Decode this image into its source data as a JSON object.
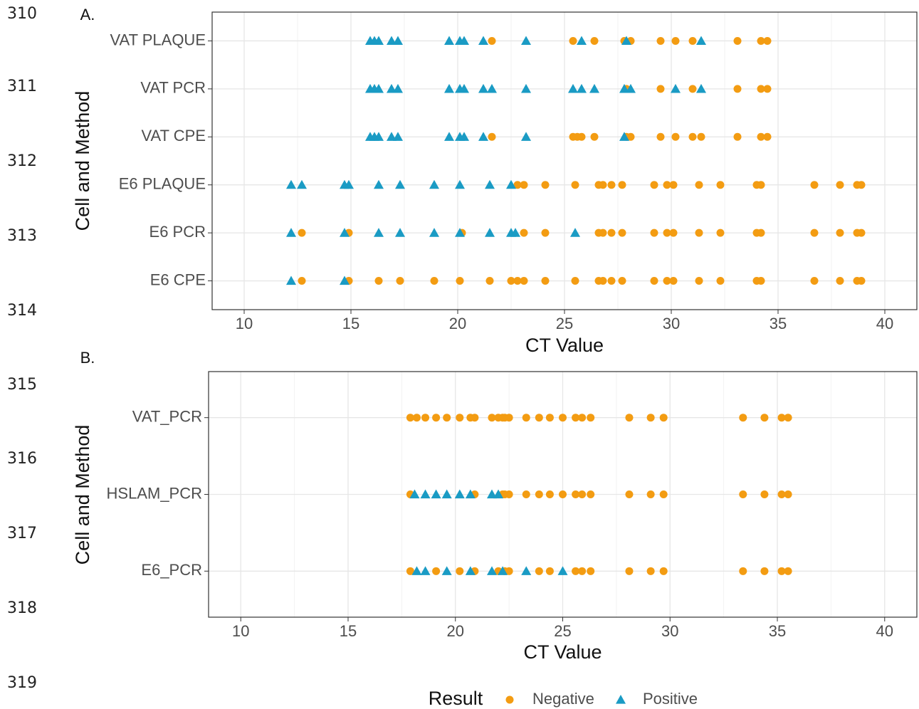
{
  "line_numbers": [
    "310",
    "311",
    "312",
    "313",
    "314",
    "315",
    "316",
    "317",
    "318",
    "319"
  ],
  "legend": {
    "title": "Result"
  },
  "chart_data": [
    {
      "type": "scatter",
      "panel_label": "A.",
      "x_label": "CT Value",
      "y_label": "Cell and Method",
      "categories": [
        "VAT PLAQUE",
        "VAT PCR",
        "VAT CPE",
        "E6 PLAQUE",
        "E6 PCR",
        "E6 CPE"
      ],
      "xlim": [
        8.5,
        41.5
      ],
      "xticks": [
        10,
        15,
        20,
        25,
        30,
        35,
        40
      ],
      "grid": true,
      "minor_grid": true,
      "series": [
        {
          "name": "Negative",
          "color": "#f39c12",
          "marker": "circle",
          "values": [
            [
              21.6,
              25.4,
              26.4,
              27.8,
              28.1,
              29.5,
              30.2,
              31.0,
              33.1,
              34.2,
              34.5
            ],
            [
              27.9,
              29.5,
              31.0,
              33.1,
              34.2,
              34.5
            ],
            [
              21.6,
              25.4,
              25.6,
              25.8,
              26.4,
              27.9,
              28.1,
              29.5,
              30.2,
              31.0,
              31.4,
              33.1,
              34.2,
              34.5
            ],
            [
              22.8,
              23.1,
              24.1,
              25.5,
              26.6,
              26.8,
              27.2,
              27.7,
              29.2,
              29.8,
              30.1,
              31.3,
              32.3,
              34.0,
              34.2,
              36.7,
              37.9,
              38.7,
              38.9
            ],
            [
              12.7,
              14.9,
              20.2,
              23.1,
              24.1,
              26.6,
              26.8,
              27.2,
              27.7,
              29.2,
              29.8,
              30.1,
              31.3,
              32.3,
              34.0,
              34.2,
              36.7,
              37.9,
              38.7,
              38.9
            ],
            [
              12.7,
              14.9,
              16.3,
              17.3,
              18.9,
              20.1,
              21.5,
              22.5,
              22.8,
              23.1,
              24.1,
              25.5,
              26.6,
              26.8,
              27.2,
              27.7,
              29.2,
              29.8,
              30.1,
              31.3,
              32.3,
              34.0,
              34.2,
              36.7,
              37.9,
              38.7,
              38.9
            ]
          ]
        },
        {
          "name": "Positive",
          "color": "#1a9bc4",
          "marker": "triangle",
          "values": [
            [
              15.9,
              16.1,
              16.3,
              16.9,
              17.2,
              19.6,
              20.1,
              20.3,
              21.2,
              23.2,
              25.8,
              27.9,
              31.4
            ],
            [
              15.9,
              16.1,
              16.3,
              16.9,
              17.2,
              19.6,
              20.1,
              20.3,
              21.2,
              21.6,
              23.2,
              25.4,
              25.8,
              26.4,
              27.8,
              28.1,
              30.2,
              31.4
            ],
            [
              15.9,
              16.1,
              16.3,
              16.9,
              17.2,
              19.6,
              20.1,
              20.3,
              21.2,
              23.2,
              27.8
            ],
            [
              12.2,
              12.7,
              14.7,
              14.9,
              16.3,
              17.3,
              18.9,
              20.1,
              21.5,
              22.5
            ],
            [
              12.2,
              14.7,
              16.3,
              17.3,
              18.9,
              20.1,
              21.5,
              22.5,
              22.7,
              25.5
            ],
            [
              12.2,
              14.7
            ]
          ]
        }
      ]
    },
    {
      "type": "scatter",
      "panel_label": "B.",
      "x_label": "CT Value",
      "y_label": "Cell and Method",
      "categories": [
        "VAT_PCR",
        "HSLAM_PCR",
        "E6_PCR"
      ],
      "xlim": [
        8.5,
        41.5
      ],
      "xticks": [
        10,
        15,
        20,
        25,
        30,
        35,
        40
      ],
      "grid": true,
      "minor_grid": true,
      "series": [
        {
          "name": "Negative",
          "color": "#f39c12",
          "marker": "circle",
          "values": [
            [
              17.9,
              18.2,
              18.6,
              19.1,
              19.6,
              20.2,
              20.7,
              20.9,
              21.7,
              22.0,
              22.2,
              22.3,
              22.5,
              23.3,
              23.9,
              24.4,
              25.0,
              25.6,
              25.9,
              26.3,
              28.1,
              29.1,
              29.7,
              33.4,
              34.4,
              35.2,
              35.5
            ],
            [
              17.9,
              20.9,
              22.2,
              22.3,
              22.5,
              23.3,
              23.9,
              24.4,
              25.0,
              25.6,
              25.9,
              26.3,
              28.1,
              29.1,
              29.7,
              33.4,
              34.4,
              35.2,
              35.5
            ],
            [
              17.9,
              19.1,
              20.2,
              20.9,
              22.0,
              22.3,
              22.5,
              23.9,
              24.4,
              25.6,
              25.9,
              26.3,
              28.1,
              29.1,
              29.7,
              33.4,
              34.4,
              35.2,
              35.5
            ]
          ]
        },
        {
          "name": "Positive",
          "color": "#1a9bc4",
          "marker": "triangle",
          "values": [
            [],
            [
              18.1,
              18.6,
              19.1,
              19.6,
              20.2,
              20.7,
              21.7,
              22.0
            ],
            [
              18.2,
              18.6,
              19.6,
              20.7,
              21.7,
              22.2,
              23.3,
              25.0
            ]
          ]
        }
      ]
    }
  ]
}
